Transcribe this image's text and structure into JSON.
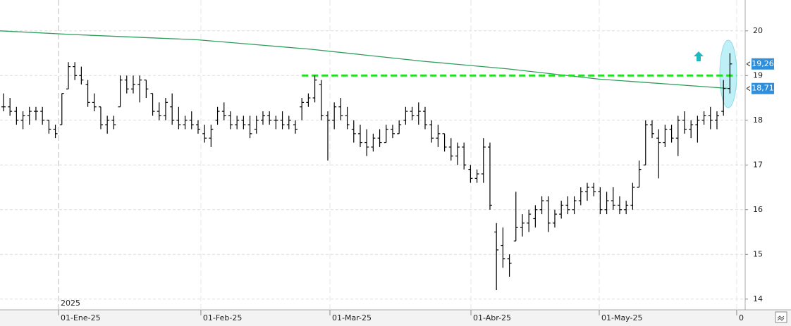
{
  "chart_data": {
    "type": "ohlc",
    "ohlc": [
      [
        18.3,
        18.6,
        18.2,
        18.3
      ],
      [
        18.3,
        18.5,
        18.1,
        18.2
      ],
      [
        18.2,
        18.3,
        17.9,
        18.0
      ],
      [
        18.0,
        18.2,
        17.8,
        18.1
      ],
      [
        18.1,
        18.3,
        17.9,
        18.2
      ],
      [
        18.2,
        18.3,
        18.0,
        18.2
      ],
      [
        18.2,
        18.3,
        17.9,
        18.0
      ],
      [
        18.0,
        18.0,
        17.7,
        17.8
      ],
      [
        17.8,
        17.9,
        17.6,
        17.7
      ],
      [
        17.9,
        18.6,
        17.9,
        18.6
      ],
      [
        18.7,
        19.3,
        18.7,
        19.2
      ],
      [
        19.2,
        19.3,
        18.9,
        19.0
      ],
      [
        19.0,
        19.2,
        18.8,
        18.9
      ],
      [
        18.8,
        18.9,
        18.3,
        18.4
      ],
      [
        18.4,
        18.6,
        18.2,
        18.3
      ],
      [
        18.3,
        18.3,
        17.8,
        17.9
      ],
      [
        17.9,
        18.1,
        17.7,
        18.0
      ],
      [
        18.0,
        18.1,
        17.8,
        17.9
      ],
      [
        18.3,
        19.0,
        18.3,
        18.9
      ],
      [
        18.9,
        19.0,
        18.6,
        18.7
      ],
      [
        18.7,
        19.0,
        18.6,
        18.8
      ],
      [
        18.8,
        19.0,
        18.4,
        18.9
      ],
      [
        18.9,
        18.9,
        18.5,
        18.7
      ],
      [
        18.6,
        18.6,
        18.1,
        18.2
      ],
      [
        18.2,
        18.4,
        18.0,
        18.1
      ],
      [
        18.1,
        18.5,
        18.0,
        18.4
      ],
      [
        18.3,
        18.6,
        17.9,
        18.0
      ],
      [
        18.0,
        18.3,
        17.8,
        17.9
      ],
      [
        17.9,
        18.1,
        17.8,
        18.0
      ],
      [
        18.0,
        18.2,
        17.8,
        17.9
      ],
      [
        17.9,
        18.0,
        17.7,
        17.8
      ],
      [
        17.7,
        17.9,
        17.5,
        17.6
      ],
      [
        17.6,
        17.9,
        17.4,
        17.8
      ],
      [
        18.0,
        18.3,
        17.9,
        18.2
      ],
      [
        18.2,
        18.4,
        18.0,
        18.1
      ],
      [
        18.1,
        18.2,
        17.8,
        17.9
      ],
      [
        17.9,
        18.1,
        17.8,
        18.0
      ],
      [
        18.0,
        18.1,
        17.8,
        17.9
      ],
      [
        17.9,
        18.1,
        17.6,
        17.7
      ],
      [
        17.8,
        18.1,
        17.7,
        18.0
      ],
      [
        18.0,
        18.2,
        17.9,
        18.1
      ],
      [
        18.1,
        18.2,
        17.9,
        18.0
      ],
      [
        18.0,
        18.1,
        17.8,
        18.0
      ],
      [
        18.0,
        18.2,
        17.8,
        17.9
      ],
      [
        17.9,
        18.1,
        17.8,
        18.0
      ],
      [
        17.9,
        18.0,
        17.7,
        17.8
      ],
      [
        18.3,
        18.5,
        18.0,
        18.4
      ],
      [
        18.4,
        18.6,
        18.3,
        18.5
      ],
      [
        18.5,
        19.0,
        18.4,
        18.9
      ],
      [
        18.8,
        18.9,
        18.0,
        18.1
      ],
      [
        18.1,
        18.2,
        17.1,
        18.0
      ],
      [
        18.0,
        18.4,
        17.8,
        18.3
      ],
      [
        18.3,
        18.5,
        18.0,
        18.1
      ],
      [
        18.1,
        18.3,
        17.8,
        17.9
      ],
      [
        17.8,
        18.0,
        17.5,
        17.7
      ],
      [
        17.7,
        17.9,
        17.4,
        17.5
      ],
      [
        17.5,
        17.8,
        17.2,
        17.4
      ],
      [
        17.4,
        17.7,
        17.3,
        17.6
      ],
      [
        17.6,
        17.8,
        17.4,
        17.5
      ],
      [
        17.5,
        17.9,
        17.5,
        17.8
      ],
      [
        17.8,
        17.9,
        17.6,
        17.7
      ],
      [
        17.7,
        18.0,
        17.7,
        17.9
      ],
      [
        18.0,
        18.3,
        17.9,
        18.2
      ],
      [
        18.2,
        18.3,
        18.0,
        18.1
      ],
      [
        18.1,
        18.4,
        17.9,
        18.2
      ],
      [
        18.2,
        18.3,
        17.8,
        17.9
      ],
      [
        17.9,
        18.0,
        17.5,
        17.6
      ],
      [
        17.6,
        17.9,
        17.4,
        17.7
      ],
      [
        17.7,
        17.7,
        17.3,
        17.4
      ],
      [
        17.4,
        17.6,
        17.1,
        17.2
      ],
      [
        17.2,
        17.5,
        17.0,
        17.4
      ],
      [
        17.4,
        17.5,
        16.9,
        17.0
      ],
      [
        16.9,
        17.0,
        16.6,
        16.7
      ],
      [
        16.7,
        16.9,
        16.6,
        16.8
      ],
      [
        16.8,
        17.6,
        16.6,
        17.4
      ],
      [
        17.4,
        17.5,
        16.0,
        16.1
      ],
      [
        15.5,
        15.7,
        14.2,
        15.1
      ],
      [
        15.2,
        15.6,
        14.7,
        14.9
      ],
      [
        14.9,
        15.0,
        14.5,
        14.8
      ],
      [
        15.3,
        16.4,
        15.3,
        15.6
      ],
      [
        15.6,
        15.9,
        15.4,
        15.7
      ],
      [
        15.7,
        16.0,
        15.5,
        15.9
      ],
      [
        15.8,
        16.1,
        15.6,
        16.0
      ],
      [
        16.0,
        16.3,
        15.9,
        16.2
      ],
      [
        16.2,
        16.3,
        15.5,
        15.7
      ],
      [
        15.7,
        16.0,
        15.6,
        15.9
      ],
      [
        15.9,
        16.2,
        15.8,
        16.1
      ],
      [
        16.1,
        16.3,
        15.9,
        16.0
      ],
      [
        16.0,
        16.3,
        15.9,
        16.2
      ],
      [
        16.2,
        16.5,
        16.1,
        16.4
      ],
      [
        16.4,
        16.6,
        16.2,
        16.5
      ],
      [
        16.5,
        16.6,
        16.3,
        16.4
      ],
      [
        16.4,
        16.5,
        15.9,
        16.0
      ],
      [
        16.0,
        16.4,
        15.9,
        16.2
      ],
      [
        16.2,
        16.5,
        16.0,
        16.1
      ],
      [
        16.1,
        16.3,
        15.9,
        16.0
      ],
      [
        16.0,
        16.2,
        15.9,
        16.1
      ],
      [
        16.1,
        16.6,
        16.0,
        16.5
      ],
      [
        16.5,
        17.1,
        16.5,
        16.9
      ],
      [
        17.0,
        18.0,
        17.0,
        17.9
      ],
      [
        17.9,
        18.0,
        17.6,
        17.7
      ],
      [
        17.6,
        17.8,
        16.7,
        17.5
      ],
      [
        17.5,
        17.9,
        17.4,
        17.8
      ],
      [
        17.8,
        17.9,
        17.5,
        17.6
      ],
      [
        17.6,
        18.1,
        17.2,
        18.0
      ],
      [
        18.0,
        18.2,
        17.7,
        17.8
      ],
      [
        17.8,
        18.0,
        17.6,
        17.9
      ],
      [
        17.9,
        18.1,
        17.5,
        18.0
      ],
      [
        18.0,
        18.2,
        17.9,
        18.1
      ],
      [
        18.1,
        18.3,
        17.8,
        18.0
      ],
      [
        18.0,
        18.2,
        17.8,
        18.1
      ],
      [
        18.2,
        18.9,
        18.1,
        18.71
      ],
      [
        18.71,
        19.5,
        18.6,
        19.26
      ]
    ],
    "bar_color": "#000000",
    "moving_average": {
      "color": "#2e9e5b",
      "x": [
        -0.54,
        10.3,
        29.9,
        47.3,
        64.7,
        77.7,
        91.8,
        112
      ],
      "values": [
        20.0,
        19.92,
        19.8,
        19.59,
        19.32,
        19.15,
        18.92,
        18.71
      ]
    },
    "resistance": {
      "color": "#22dd22",
      "value": 19.0,
      "x": [
        46,
        113
      ]
    },
    "price_labels": [
      {
        "value": 19.26,
        "label": "19,26"
      },
      {
        "value": 18.71,
        "label": "18,71"
      }
    ],
    "year_label": "2025",
    "xlim": [
      -0.54,
      114.35
    ],
    "xticks": [
      {
        "value": 8.48,
        "label": "01-Ene-25"
      },
      {
        "value": 30.43,
        "label": "01-Feb-25"
      },
      {
        "value": 50.33,
        "label": "01-Mar-25"
      },
      {
        "value": 72.07,
        "label": "01-Abr-25"
      },
      {
        "value": 91.85,
        "label": "01-May-25"
      },
      {
        "value": 113.04,
        "label": "0"
      }
    ],
    "ylim": [
      13.76,
      20.69
    ],
    "yticks": [
      14,
      15,
      16,
      17,
      18,
      19,
      20
    ],
    "grid": true
  }
}
